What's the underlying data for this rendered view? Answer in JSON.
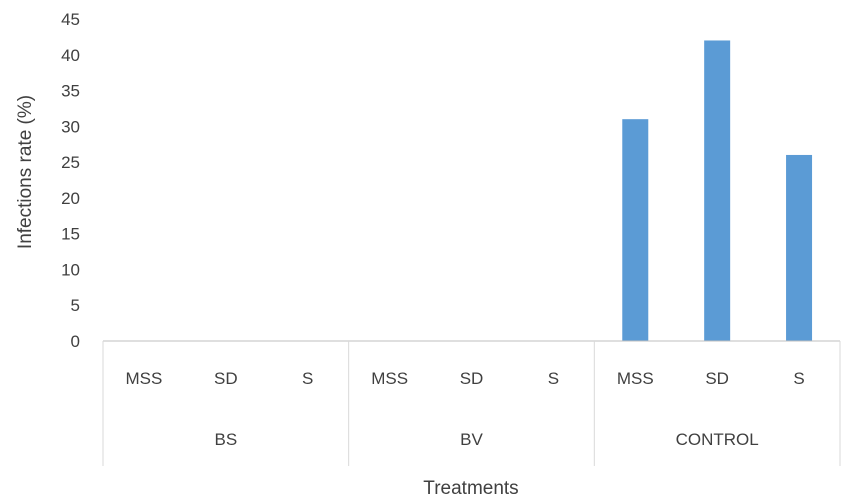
{
  "chart_data": {
    "type": "bar",
    "groups": [
      {
        "label": "BS",
        "categories": [
          "MSS",
          "SD",
          "S"
        ],
        "values": [
          0,
          0,
          0
        ]
      },
      {
        "label": "BV",
        "categories": [
          "MSS",
          "SD",
          "S"
        ],
        "values": [
          0,
          0,
          0
        ]
      },
      {
        "label": "CONTROL",
        "categories": [
          "MSS",
          "SD",
          "S"
        ],
        "values": [
          31,
          42,
          26
        ]
      }
    ],
    "xlabel": "Treatments",
    "ylabel": "Infections rate (%)",
    "ylim": [
      0,
      45
    ],
    "yticks": [
      0,
      5,
      10,
      15,
      20,
      25,
      30,
      35,
      40,
      45
    ],
    "grid": false,
    "bar_color": "#5b9bd5"
  }
}
